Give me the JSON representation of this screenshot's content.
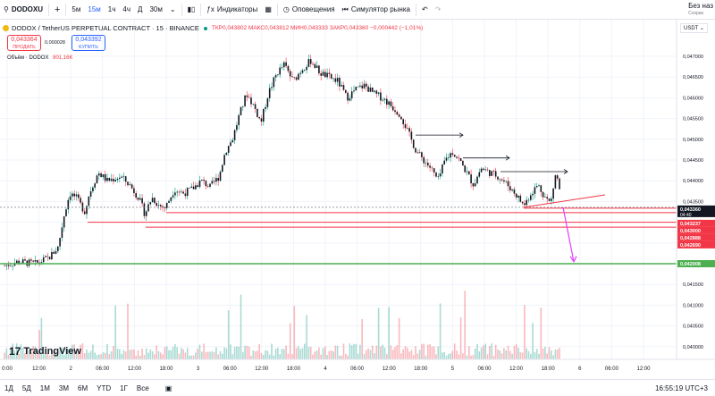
{
  "toolbar": {
    "symbol": "DODOXU",
    "add": "+",
    "tf": [
      "5м",
      "15м",
      "1ч",
      "4ч",
      "Д",
      "30м"
    ],
    "active_tf": "15м",
    "indicators": "Индикаторы",
    "alerts": "Оповещения",
    "replay": "Симулятор рынка",
    "right_title": "Без наз",
    "right_sub": "Сохран"
  },
  "legend": {
    "title": "DODOX / TetherUS PERPETUAL CONTRACT · 15 · BINANCE",
    "ohlc": "ТКР0,043802 МАКС0,043812 МИН0,043333 ЗАКР0,043360 −0,000442 (−1,01%)",
    "sell_price": "0,043364",
    "sell_label": "ПРОДАТЬ",
    "spread": "0,000028",
    "buy_price": "0,043392",
    "buy_label": "КУПИТЬ",
    "volume_label": "Объём · DODOX",
    "volume_value": "801,16K",
    "currency": "USDT"
  },
  "watermark": "TradingView",
  "price_axis": [
    "0,047000",
    "0,046500",
    "0,046000",
    "0,045500",
    "0,045000",
    "0,044500",
    "0,044000",
    "0,043500",
    "0,043000",
    "0,042500",
    "0,042000",
    "0,041500",
    "0,041000",
    "0,040500",
    "0,040000"
  ],
  "time_axis": [
    "0:00",
    "12:00",
    "2",
    "06:00",
    "12:00",
    "18:00",
    "3",
    "06:00",
    "12:00",
    "18:00",
    "4",
    "06:00",
    "12:00",
    "18:00",
    "5",
    "06:00",
    "12:00",
    "18:00",
    "6",
    "06:00",
    "12:00"
  ],
  "price_tags": [
    {
      "label": "0,043360",
      "countdown": "04:40",
      "color": "#131722"
    },
    {
      "label": "0,043237",
      "color": "#f23645"
    },
    {
      "label": "0,043000",
      "color": "#f23645"
    },
    {
      "label": "0,042888",
      "color": "#f23645"
    },
    {
      "label": "0,042690",
      "color": "#f23645"
    },
    {
      "label": "0,042008",
      "color": "#4caf50"
    }
  ],
  "ranges": [
    "1Д",
    "5Д",
    "1М",
    "3М",
    "6М",
    "YTD",
    "1Г",
    "Все"
  ],
  "clock": "16:55:19 UTC+3",
  "colors": {
    "up": "#089981",
    "down": "#f23645",
    "support": "#f23645",
    "target": "#4caf50",
    "arrow": "#e040fb"
  }
}
